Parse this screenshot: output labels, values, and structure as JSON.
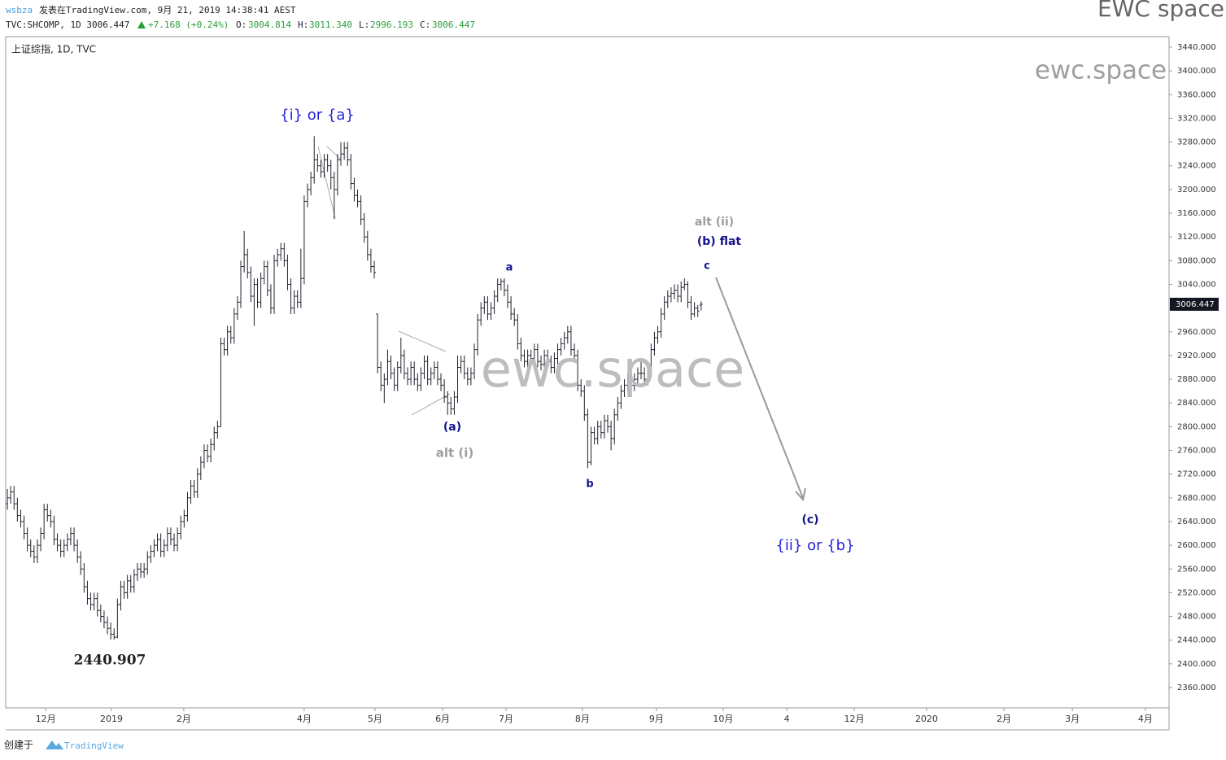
{
  "header": {
    "user": "wsbza",
    "published": "发表在TradingView.com, 9月 21, 2019 14:38:41 AEST",
    "brand": "EWC space",
    "symbol_line": [
      "TVC:SHCOMP, 1D 3006.447",
      "+7.168 (+0.24%)",
      "O:",
      "3004.814",
      "H:",
      "3011.340",
      "L:",
      "2996.193",
      "C:",
      "3006.447"
    ]
  },
  "footer": {
    "created": "创建于",
    "logo": "TradingView"
  },
  "chart_data": {
    "type": "ohlc",
    "title": "上证综指, 1D, TVC",
    "color": "#1e222d",
    "grid": false,
    "xlim": [
      -0.5,
      348.3
    ],
    "ylim": [
      2325.7,
      3457.8
    ],
    "xticks": [
      {
        "value": 11.5,
        "label": "12月"
      },
      {
        "value": 31.2,
        "label": "2019"
      },
      {
        "value": 52.9,
        "label": "2月"
      },
      {
        "value": 89,
        "label": "4月"
      },
      {
        "value": 110.2,
        "label": "5月"
      },
      {
        "value": 130.5,
        "label": "6月"
      },
      {
        "value": 149.5,
        "label": "7月"
      },
      {
        "value": 172.4,
        "label": "8月"
      },
      {
        "value": 194.6,
        "label": "9月"
      },
      {
        "value": 214.6,
        "label": "10月"
      },
      {
        "value": 233.7,
        "label": "4"
      },
      {
        "value": 253.9,
        "label": "12月"
      },
      {
        "value": 275.6,
        "label": "2020"
      },
      {
        "value": 298.8,
        "label": "2月"
      },
      {
        "value": 319.3,
        "label": "3月"
      },
      {
        "value": 341.2,
        "label": "4月"
      }
    ],
    "yticks": [
      {
        "value": 2360,
        "label": "2360.000"
      },
      {
        "value": 2400,
        "label": "2400.000"
      },
      {
        "value": 2440,
        "label": "2440.000"
      },
      {
        "value": 2480,
        "label": "2480.000"
      },
      {
        "value": 2520,
        "label": "2520.000"
      },
      {
        "value": 2560,
        "label": "2560.000"
      },
      {
        "value": 2600,
        "label": "2600.000"
      },
      {
        "value": 2640,
        "label": "2640.000"
      },
      {
        "value": 2680,
        "label": "2680.000"
      },
      {
        "value": 2720,
        "label": "2720.000"
      },
      {
        "value": 2760,
        "label": "2760.000"
      },
      {
        "value": 2800,
        "label": "2800.000"
      },
      {
        "value": 2840,
        "label": "2840.000"
      },
      {
        "value": 2880,
        "label": "2880.000"
      },
      {
        "value": 2920,
        "label": "2920.000"
      },
      {
        "value": 2960,
        "label": "2960.000"
      },
      {
        "value": 3000,
        "label": "3000.000"
      },
      {
        "value": 3040,
        "label": "3040.000"
      },
      {
        "value": 3080,
        "label": "3080.000"
      },
      {
        "value": 3120,
        "label": "3120.000"
      },
      {
        "value": 3160,
        "label": "3160.000"
      },
      {
        "value": 3200,
        "label": "3200.000"
      },
      {
        "value": 3240,
        "label": "3240.000"
      },
      {
        "value": 3280,
        "label": "3280.000"
      },
      {
        "value": 3320,
        "label": "3320.000"
      },
      {
        "value": 3360,
        "label": "3360.000"
      },
      {
        "value": 3400,
        "label": "3400.000"
      },
      {
        "value": 3440,
        "label": "3440.000"
      }
    ],
    "last_price": 3006.447,
    "annotations": [
      {
        "text": "{i} or {a}",
        "color": "#2323d6"
      },
      {
        "text": "(a)",
        "color": "#14148c"
      },
      {
        "text": "alt (i)",
        "color": "#9e9e9e"
      },
      {
        "text": "a",
        "color": "#14148c"
      },
      {
        "text": "b",
        "color": "#14148c"
      },
      {
        "text": "alt (ii)",
        "color": "#9e9e9e"
      },
      {
        "text": "(b) flat",
        "color": "#14148c"
      },
      {
        "text": "c",
        "color": "#14148c"
      },
      {
        "text": "(c)",
        "color": "#14148c"
      },
      {
        "text": "{ii} or {b}",
        "color": "#2323d6"
      },
      {
        "text": "2440.907",
        "color": "#222222"
      },
      {
        "text": "ewc.space",
        "color": "#bdbdbd"
      },
      {
        "text": "ewc.space",
        "color": "#9e9e9e"
      }
    ],
    "ohlc": [
      [
        2670,
        2695,
        2660,
        2680
      ],
      [
        2680,
        2700,
        2670,
        2690
      ],
      [
        2690,
        2700,
        2660,
        2670
      ],
      [
        2670,
        2680,
        2640,
        2650
      ],
      [
        2650,
        2660,
        2630,
        2640
      ],
      [
        2640,
        2650,
        2610,
        2620
      ],
      [
        2620,
        2630,
        2590,
        2600
      ],
      [
        2600,
        2610,
        2580,
        2590
      ],
      [
        2590,
        2600,
        2570,
        2580
      ],
      [
        2580,
        2610,
        2570,
        2600
      ],
      [
        2600,
        2630,
        2590,
        2620
      ],
      [
        2620,
        2670,
        2610,
        2660
      ],
      [
        2660,
        2670,
        2640,
        2650
      ],
      [
        2650,
        2660,
        2630,
        2640
      ],
      [
        2640,
        2650,
        2600,
        2610
      ],
      [
        2610,
        2620,
        2590,
        2600
      ],
      [
        2600,
        2610,
        2580,
        2590
      ],
      [
        2590,
        2610,
        2580,
        2600
      ],
      [
        2600,
        2620,
        2590,
        2610
      ],
      [
        2610,
        2630,
        2600,
        2620
      ],
      [
        2620,
        2630,
        2590,
        2600
      ],
      [
        2600,
        2610,
        2570,
        2580
      ],
      [
        2580,
        2590,
        2550,
        2560
      ],
      [
        2560,
        2570,
        2520,
        2530
      ],
      [
        2530,
        2540,
        2500,
        2510
      ],
      [
        2510,
        2520,
        2490,
        2500
      ],
      [
        2500,
        2520,
        2490,
        2510
      ],
      [
        2510,
        2520,
        2480,
        2490
      ],
      [
        2490,
        2500,
        2470,
        2480
      ],
      [
        2480,
        2490,
        2460,
        2470
      ],
      [
        2470,
        2480,
        2450,
        2460
      ],
      [
        2460,
        2470,
        2441,
        2450
      ],
      [
        2450,
        2460,
        2440.907,
        2445
      ],
      [
        2445,
        2510,
        2443,
        2500
      ],
      [
        2500,
        2540,
        2490,
        2530
      ],
      [
        2530,
        2540,
        2510,
        2520
      ],
      [
        2520,
        2550,
        2510,
        2540
      ],
      [
        2540,
        2550,
        2520,
        2530
      ],
      [
        2530,
        2560,
        2520,
        2550
      ],
      [
        2550,
        2570,
        2540,
        2560
      ],
      [
        2560,
        2570,
        2545,
        2555
      ],
      [
        2555,
        2570,
        2545,
        2560
      ],
      [
        2560,
        2590,
        2550,
        2580
      ],
      [
        2580,
        2600,
        2570,
        2590
      ],
      [
        2590,
        2610,
        2580,
        2600
      ],
      [
        2600,
        2620,
        2590,
        2610
      ],
      [
        2610,
        2620,
        2580,
        2590
      ],
      [
        2590,
        2610,
        2580,
        2600
      ],
      [
        2600,
        2630,
        2590,
        2620
      ],
      [
        2620,
        2630,
        2600,
        2610
      ],
      [
        2610,
        2620,
        2590,
        2600
      ],
      [
        2600,
        2630,
        2590,
        2620
      ],
      [
        2620,
        2650,
        2610,
        2640
      ],
      [
        2640,
        2660,
        2630,
        2650
      ],
      [
        2650,
        2690,
        2640,
        2680
      ],
      [
        2680,
        2710,
        2670,
        2700
      ],
      [
        2700,
        2710,
        2680,
        2690
      ],
      [
        2690,
        2730,
        2680,
        2720
      ],
      [
        2720,
        2750,
        2710,
        2740
      ],
      [
        2740,
        2770,
        2730,
        2760
      ],
      [
        2760,
        2770,
        2740,
        2750
      ],
      [
        2750,
        2780,
        2740,
        2770
      ],
      [
        2770,
        2800,
        2760,
        2790
      ],
      [
        2790,
        2810,
        2780,
        2800
      ],
      [
        2800,
        2950,
        2800,
        2940
      ],
      [
        2940,
        2950,
        2920,
        2930
      ],
      [
        2930,
        2970,
        2920,
        2960
      ],
      [
        2960,
        2970,
        2940,
        2950
      ],
      [
        2950,
        3000,
        2940,
        2990
      ],
      [
        2990,
        3020,
        2980,
        3010
      ],
      [
        3010,
        3080,
        3000,
        3070
      ],
      [
        3070,
        3130,
        3060,
        3090
      ],
      [
        3090,
        3100,
        3050,
        3060
      ],
      [
        3060,
        3070,
        3010,
        3020
      ],
      [
        3020,
        3050,
        2970,
        3040
      ],
      [
        3040,
        3050,
        3000,
        3010
      ],
      [
        3010,
        3060,
        3000,
        3050
      ],
      [
        3050,
        3080,
        3040,
        3070
      ],
      [
        3070,
        3080,
        3020,
        3030
      ],
      [
        3030,
        3040,
        2990,
        3000
      ],
      [
        3000,
        3090,
        2990,
        3080
      ],
      [
        3080,
        3100,
        3070,
        3090
      ],
      [
        3090,
        3110,
        3080,
        3100
      ],
      [
        3100,
        3110,
        3070,
        3080
      ],
      [
        3080,
        3090,
        3030,
        3040
      ],
      [
        3040,
        3050,
        2990,
        3000
      ],
      [
        3000,
        3030,
        2990,
        3020
      ],
      [
        3020,
        3030,
        3000,
        3010
      ],
      [
        3010,
        3100,
        3000,
        3050
      ],
      [
        3050,
        3190,
        3040,
        3180
      ],
      [
        3180,
        3210,
        3170,
        3200
      ],
      [
        3200,
        3230,
        3190,
        3220
      ],
      [
        3220,
        3290,
        3210,
        3250
      ],
      [
        3250,
        3260,
        3230,
        3240
      ],
      [
        3240,
        3250,
        3220,
        3230
      ],
      [
        3230,
        3260,
        3220,
        3250
      ],
      [
        3250,
        3260,
        3230,
        3240
      ],
      [
        3240,
        3250,
        3200,
        3220
      ],
      [
        3220,
        3230,
        3150,
        3200
      ],
      [
        3200,
        3260,
        3190,
        3250
      ],
      [
        3250,
        3280,
        3240,
        3260
      ],
      [
        3260,
        3280,
        3250,
        3270
      ],
      [
        3270,
        3280,
        3240,
        3250
      ],
      [
        3250,
        3260,
        3200,
        3210
      ],
      [
        3210,
        3220,
        3180,
        3190
      ],
      [
        3190,
        3200,
        3170,
        3180
      ],
      [
        3180,
        3190,
        3140,
        3150
      ],
      [
        3150,
        3160,
        3110,
        3120
      ],
      [
        3120,
        3130,
        3080,
        3090
      ],
      [
        3090,
        3100,
        3060,
        3070
      ],
      [
        3070,
        3080,
        3050,
        3060
      ],
      [
        2990,
        2990,
        2890,
        2900
      ],
      [
        2900,
        2910,
        2860,
        2870
      ],
      [
        2870,
        2890,
        2840,
        2880
      ],
      [
        2880,
        2930,
        2870,
        2910
      ],
      [
        2910,
        2920,
        2880,
        2890
      ],
      [
        2890,
        2900,
        2860,
        2870
      ],
      [
        2870,
        2910,
        2860,
        2900
      ],
      [
        2900,
        2950,
        2890,
        2920
      ],
      [
        2920,
        2930,
        2880,
        2890
      ],
      [
        2890,
        2900,
        2870,
        2880
      ],
      [
        2880,
        2910,
        2870,
        2900
      ],
      [
        2900,
        2910,
        2870,
        2880
      ],
      [
        2880,
        2890,
        2860,
        2870
      ],
      [
        2870,
        2900,
        2860,
        2890
      ],
      [
        2890,
        2920,
        2880,
        2910
      ],
      [
        2910,
        2920,
        2870,
        2880
      ],
      [
        2880,
        2900,
        2870,
        2890
      ],
      [
        2890,
        2910,
        2880,
        2900
      ],
      [
        2900,
        2910,
        2870,
        2880
      ],
      [
        2880,
        2890,
        2860,
        2870
      ],
      [
        2870,
        2880,
        2840,
        2850
      ],
      [
        2850,
        2860,
        2820,
        2840
      ],
      [
        2840,
        2850,
        2820,
        2830
      ],
      [
        2830,
        2860,
        2820,
        2850
      ],
      [
        2850,
        2920,
        2840,
        2900
      ],
      [
        2900,
        2920,
        2890,
        2910
      ],
      [
        2910,
        2920,
        2880,
        2890
      ],
      [
        2890,
        2900,
        2870,
        2880
      ],
      [
        2880,
        2900,
        2870,
        2890
      ],
      [
        2890,
        2940,
        2880,
        2930
      ],
      [
        2930,
        2990,
        2920,
        2980
      ],
      [
        2980,
        3010,
        2970,
        3000
      ],
      [
        3000,
        3020,
        2990,
        3010
      ],
      [
        3010,
        3020,
        2980,
        2990
      ],
      [
        2990,
        3010,
        2980,
        3000
      ],
      [
        3000,
        3030,
        2990,
        3020
      ],
      [
        3020,
        3050,
        3010,
        3040
      ],
      [
        3040,
        3050,
        3030,
        3045
      ],
      [
        3045,
        3050,
        3020,
        3030
      ],
      [
        3030,
        3040,
        3000,
        3010
      ],
      [
        3010,
        3020,
        2980,
        2990
      ],
      [
        2990,
        3000,
        2970,
        2980
      ],
      [
        2980,
        2990,
        2930,
        2940
      ],
      [
        2940,
        2950,
        2910,
        2920
      ],
      [
        2920,
        2930,
        2900,
        2910
      ],
      [
        2910,
        2930,
        2900,
        2920
      ],
      [
        2920,
        2930,
        2905,
        2915
      ],
      [
        2915,
        2940,
        2905,
        2930
      ],
      [
        2930,
        2940,
        2900,
        2910
      ],
      [
        2910,
        2920,
        2895,
        2905
      ],
      [
        2905,
        2930,
        2895,
        2920
      ],
      [
        2920,
        2930,
        2900,
        2910
      ],
      [
        2910,
        2920,
        2890,
        2900
      ],
      [
        2900,
        2925,
        2890,
        2915
      ],
      [
        2915,
        2940,
        2905,
        2930
      ],
      [
        2930,
        2950,
        2920,
        2940
      ],
      [
        2940,
        2960,
        2930,
        2950
      ],
      [
        2950,
        2970,
        2940,
        2960
      ],
      [
        2960,
        2970,
        2920,
        2930
      ],
      [
        2930,
        2940,
        2910,
        2920
      ],
      [
        2920,
        2930,
        2860,
        2870
      ],
      [
        2870,
        2880,
        2850,
        2860
      ],
      [
        2860,
        2870,
        2810,
        2820
      ],
      [
        2820,
        2830,
        2730,
        2740
      ],
      [
        2740,
        2800,
        2735,
        2790
      ],
      [
        2790,
        2800,
        2770,
        2780
      ],
      [
        2780,
        2810,
        2770,
        2800
      ],
      [
        2800,
        2810,
        2780,
        2790
      ],
      [
        2790,
        2820,
        2780,
        2810
      ],
      [
        2810,
        2820,
        2790,
        2800
      ],
      [
        2800,
        2810,
        2760,
        2780
      ],
      [
        2780,
        2830,
        2770,
        2820
      ],
      [
        2820,
        2850,
        2810,
        2840
      ],
      [
        2840,
        2870,
        2830,
        2860
      ],
      [
        2860,
        2880,
        2850,
        2870
      ],
      [
        2870,
        2890,
        2860,
        2880
      ],
      [
        2880,
        2890,
        2860,
        2870
      ],
      [
        2870,
        2890,
        2860,
        2880
      ],
      [
        2880,
        2900,
        2870,
        2890
      ],
      [
        2890,
        2910,
        2880,
        2890
      ],
      [
        2890,
        2900,
        2870,
        2880
      ],
      [
        2880,
        2910,
        2870,
        2900
      ],
      [
        2900,
        2940,
        2890,
        2930
      ],
      [
        2930,
        2960,
        2920,
        2950
      ],
      [
        2950,
        2970,
        2940,
        2960
      ],
      [
        2960,
        3000,
        2950,
        2990
      ],
      [
        2990,
        3020,
        2980,
        3010
      ],
      [
        3010,
        3030,
        3000,
        3020
      ],
      [
        3020,
        3035,
        3010,
        3025
      ],
      [
        3025,
        3040,
        3015,
        3030
      ],
      [
        3030,
        3040,
        3010,
        3020
      ],
      [
        3020,
        3045,
        3010,
        3035
      ],
      [
        3035,
        3050,
        3030,
        3040
      ],
      [
        3040,
        3045,
        3000,
        3010
      ],
      [
        3010,
        3020,
        2980,
        2990
      ],
      [
        2990,
        3010,
        2985,
        3000
      ],
      [
        3000,
        3005,
        2985,
        2995
      ],
      [
        3004.814,
        3011.34,
        2996.193,
        3006.447
      ]
    ]
  }
}
